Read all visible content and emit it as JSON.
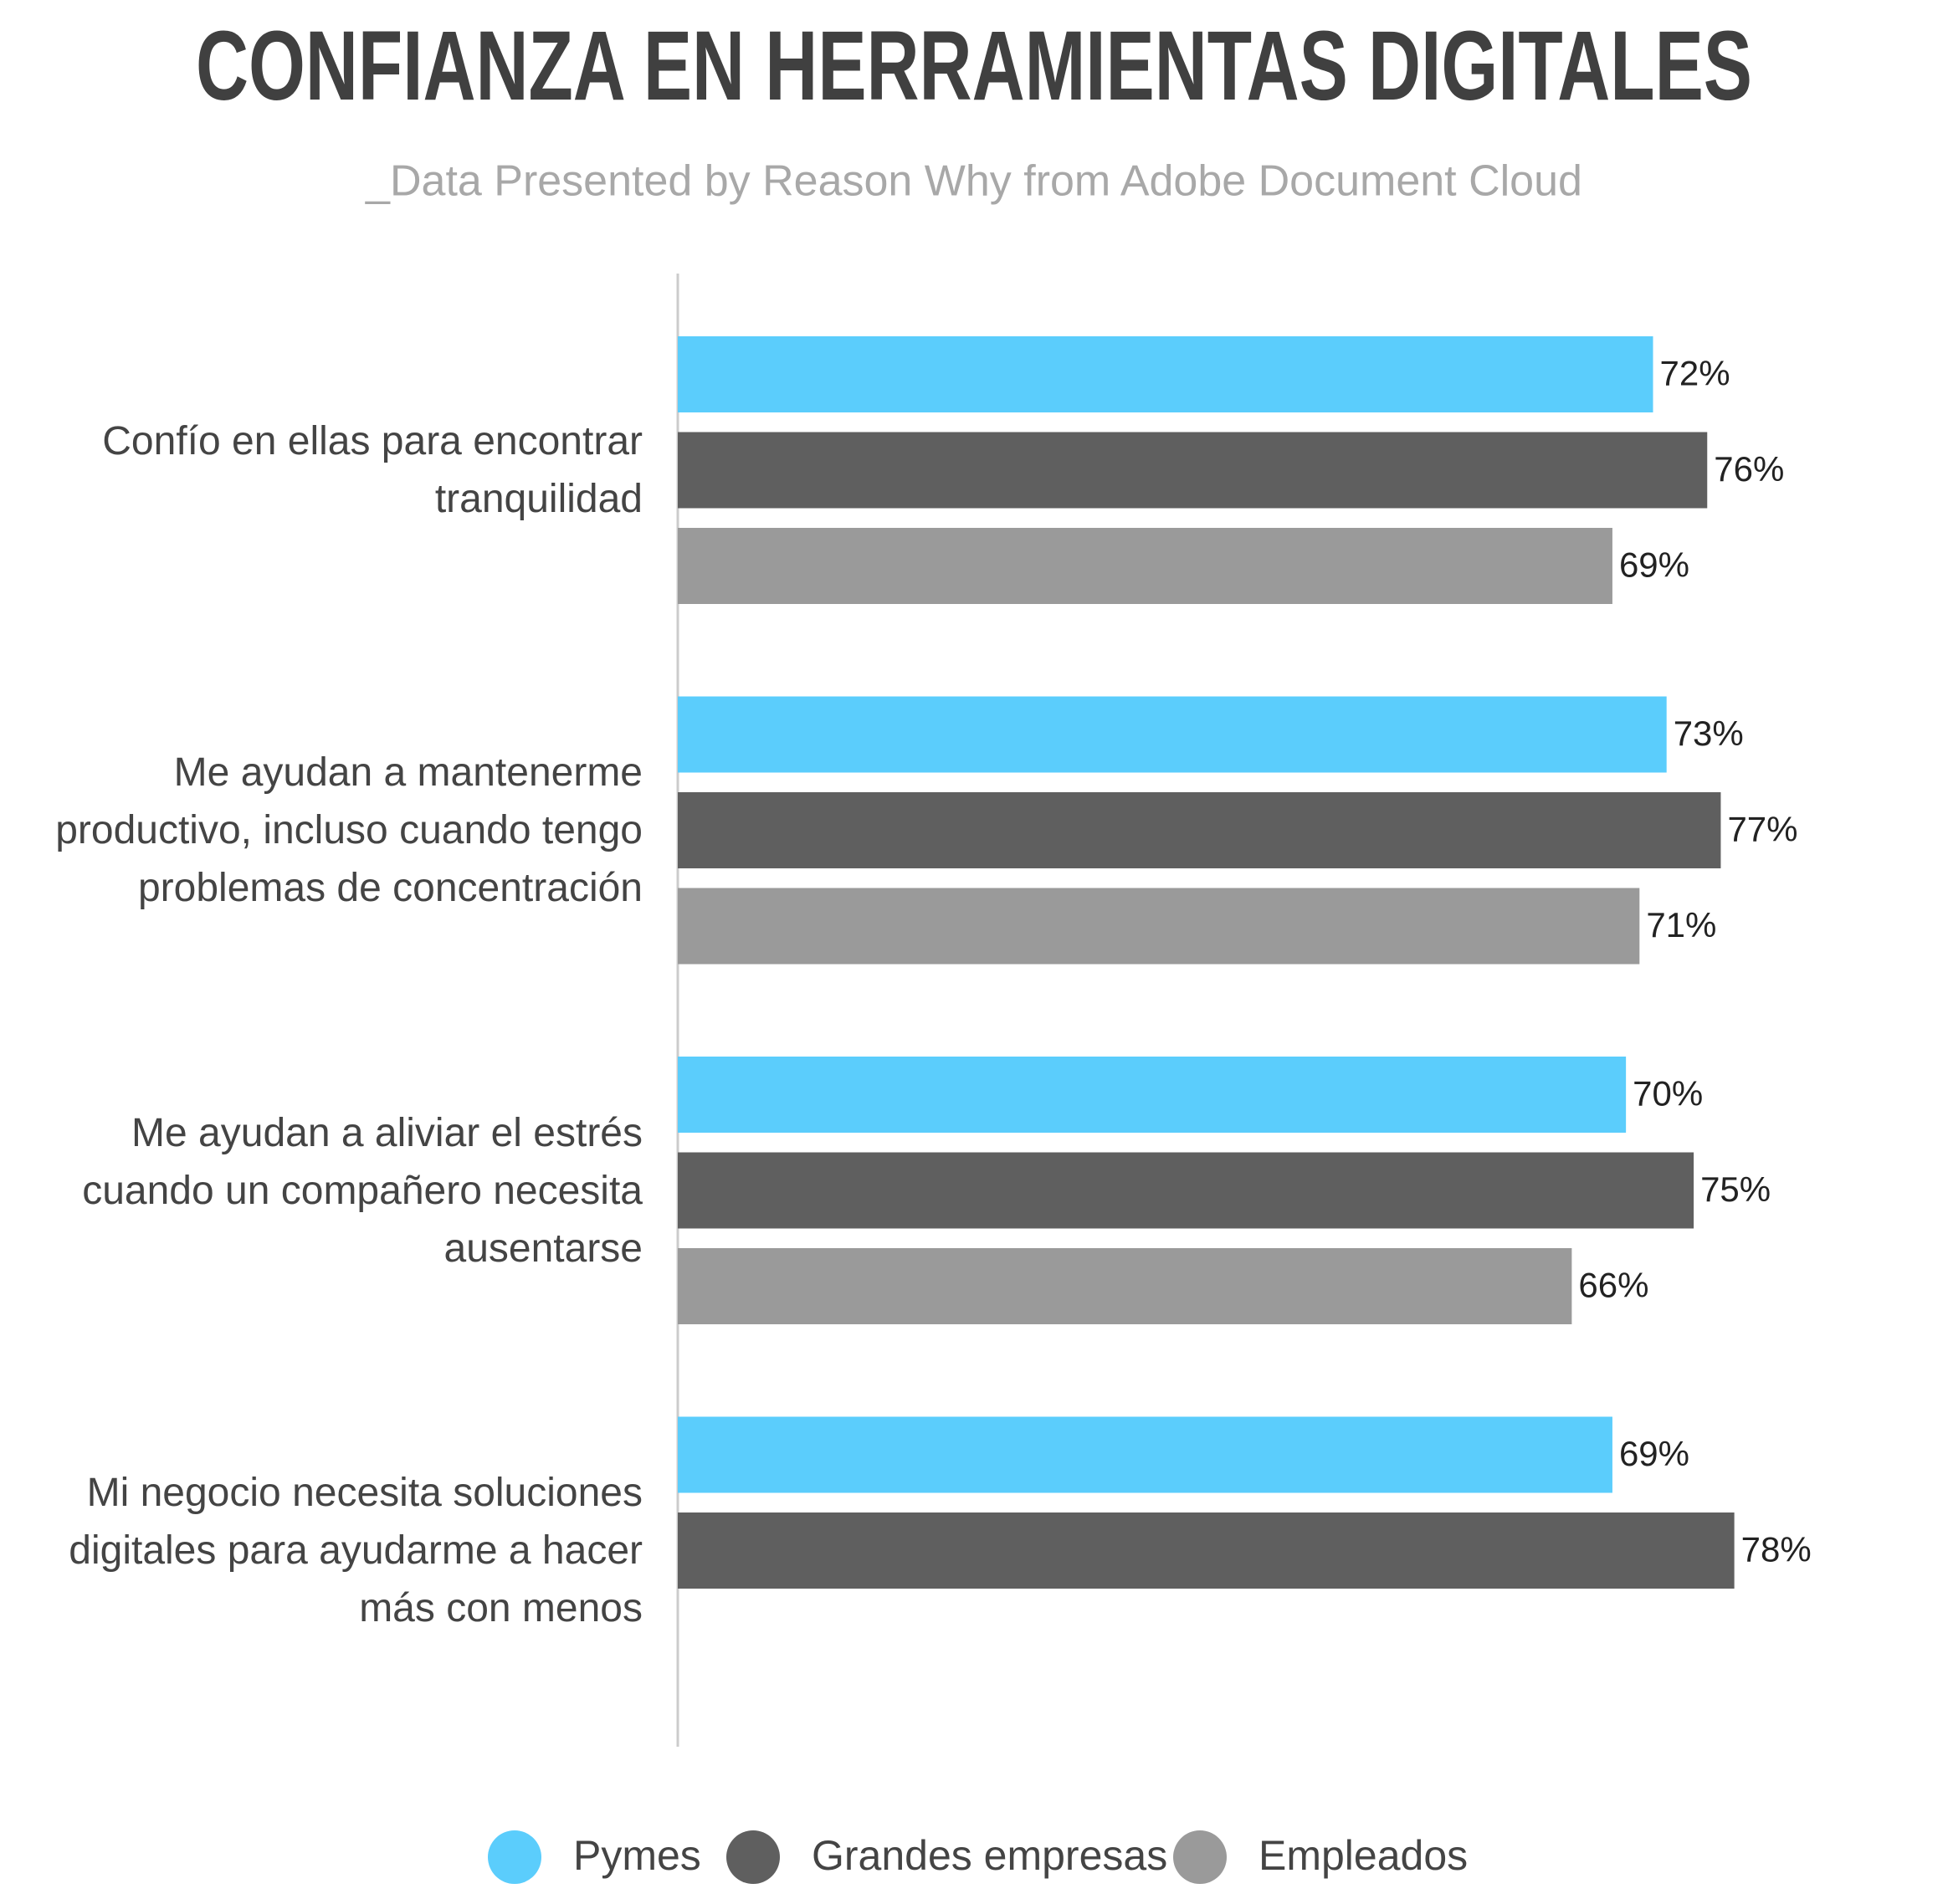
{
  "chart_data": {
    "type": "bar",
    "title": "CONFIANZA EN HERRAMIENTAS DIGITALES",
    "subtitle": "_Data Presented by Reason Why from Adobe Document Cloud",
    "categories": [
      "Confío en ellas para encontrar tranquilidad",
      "Me ayudan a mantenerme productivo, incluso cuando tengo problemas de concentración",
      "Me ayudan a aliviar el estrés cuando un compañero necesita ausentarse",
      "Mi negocio necesita soluciones digitales para ayudarme a hacer más con menos"
    ],
    "series": [
      {
        "name": "Pymes",
        "color": "#5bcdfc",
        "values": [
          72,
          73,
          70,
          69
        ],
        "value_labels": [
          "72%",
          "73%",
          "70%",
          "69%"
        ]
      },
      {
        "name": "Grandes empresas",
        "color": "#5f5f5f",
        "values": [
          76,
          77,
          75,
          78
        ],
        "value_labels": [
          "76%",
          "77%",
          "75%",
          "78%"
        ]
      },
      {
        "name": "Empleados",
        "color": "#9a9a9a",
        "values": [
          69,
          71,
          66,
          null
        ],
        "value_labels": [
          "69%",
          "71%",
          "66%",
          null
        ]
      }
    ],
    "xlim": [
      0,
      80
    ],
    "orientation": "horizontal",
    "legend": "bottom"
  }
}
